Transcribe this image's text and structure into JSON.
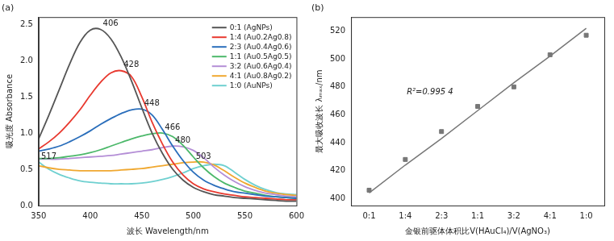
{
  "chart_data": [
    {
      "type": "line",
      "title": "(a)",
      "x_label": "波长 Wavelength/nm",
      "y_label": "吸光度 Absorbance",
      "x": [
        350,
        360,
        370,
        380,
        390,
        400,
        410,
        420,
        430,
        440,
        450,
        460,
        470,
        480,
        490,
        500,
        510,
        520,
        530,
        540,
        550,
        560,
        570,
        580,
        590,
        600
      ],
      "series": [
        {
          "name": "0:1 (AgNPs)",
          "color": "#555555",
          "peak_label": "406",
          "values": [
            0.92,
            1.25,
            1.6,
            1.95,
            2.25,
            2.42,
            2.43,
            2.3,
            2.05,
            1.72,
            1.35,
            1.0,
            0.72,
            0.5,
            0.35,
            0.25,
            0.19,
            0.15,
            0.13,
            0.11,
            0.1,
            0.09,
            0.08,
            0.07,
            0.06,
            0.06
          ]
        },
        {
          "name": "1:4 (Au0.2Ag0.8)",
          "color": "#e8392f",
          "peak_label": "428",
          "values": [
            0.78,
            0.88,
            1.0,
            1.15,
            1.32,
            1.52,
            1.7,
            1.83,
            1.86,
            1.78,
            1.5,
            1.15,
            0.85,
            0.6,
            0.42,
            0.3,
            0.23,
            0.19,
            0.16,
            0.14,
            0.12,
            0.11,
            0.1,
            0.09,
            0.08,
            0.08
          ]
        },
        {
          "name": "2:3 (Au0.4Ag0.6)",
          "color": "#2a6ebb",
          "peak_label": "448",
          "values": [
            0.75,
            0.78,
            0.82,
            0.88,
            0.95,
            1.03,
            1.12,
            1.2,
            1.27,
            1.32,
            1.33,
            1.25,
            1.05,
            0.82,
            0.62,
            0.46,
            0.35,
            0.28,
            0.23,
            0.19,
            0.17,
            0.15,
            0.13,
            0.12,
            0.11,
            0.1
          ]
        },
        {
          "name": "1:1 (Au0.5Ag0.5)",
          "color": "#4cb86a",
          "peak_label": "466",
          "values": [
            0.65,
            0.65,
            0.66,
            0.68,
            0.7,
            0.73,
            0.77,
            0.82,
            0.87,
            0.92,
            0.96,
            0.99,
            1.0,
            0.95,
            0.83,
            0.67,
            0.52,
            0.4,
            0.31,
            0.25,
            0.2,
            0.17,
            0.14,
            0.12,
            0.11,
            0.1
          ]
        },
        {
          "name": "3:2 (Au0.6Ag0.4)",
          "color": "#b48ed6",
          "peak_label": "480",
          "values": [
            0.64,
            0.64,
            0.64,
            0.65,
            0.66,
            0.67,
            0.68,
            0.69,
            0.71,
            0.73,
            0.75,
            0.77,
            0.8,
            0.82,
            0.81,
            0.76,
            0.66,
            0.53,
            0.42,
            0.33,
            0.26,
            0.21,
            0.17,
            0.15,
            0.13,
            0.12
          ]
        },
        {
          "name": "4:1 (Au0.8Ag0.2)",
          "color": "#f0a830",
          "peak_label": "503",
          "values": [
            0.55,
            0.52,
            0.5,
            0.49,
            0.48,
            0.48,
            0.48,
            0.48,
            0.49,
            0.5,
            0.51,
            0.53,
            0.55,
            0.57,
            0.59,
            0.6,
            0.6,
            0.56,
            0.48,
            0.39,
            0.31,
            0.25,
            0.2,
            0.17,
            0.15,
            0.14
          ]
        },
        {
          "name": "1:0 (AuNPs)",
          "color": "#6fd0d0",
          "peak_label": "517",
          "values": [
            0.6,
            0.5,
            0.43,
            0.38,
            0.34,
            0.32,
            0.31,
            0.3,
            0.3,
            0.3,
            0.31,
            0.33,
            0.36,
            0.4,
            0.45,
            0.51,
            0.55,
            0.57,
            0.55,
            0.46,
            0.36,
            0.28,
            0.22,
            0.18,
            0.16,
            0.15
          ]
        }
      ],
      "xlim": [
        350,
        600
      ],
      "xticks": [
        350,
        400,
        450,
        500,
        550,
        600
      ],
      "ylim": [
        0,
        2.6
      ],
      "yticks": [
        {
          "value": 0,
          "label": "0.0"
        },
        0.5,
        {
          "value": 1,
          "label": "1.0"
        },
        1.5,
        {
          "value": 2,
          "label": "2.0"
        },
        2.5
      ],
      "grid": false,
      "legend": "upper right"
    },
    {
      "type": "scatter",
      "title": "(b)",
      "x_label": "金银前驱体体积比V(HAuCl₄)/V(AgNO₃)",
      "y_label": "最大吸收波长 λₘₐₓ/nm",
      "categories": [
        "0:1",
        "1:4",
        "2:3",
        "1:1",
        "3:2",
        "4:1",
        "1:0"
      ],
      "series": [
        {
          "type": "scatter",
          "marker": "square",
          "color": "#777777",
          "values": [
            406,
            428,
            448,
            466,
            480,
            503,
            517
          ]
        },
        {
          "type": "line",
          "color": "#777777",
          "line_style": "solid",
          "values": [
            404,
            424,
            443,
            463,
            483,
            502,
            522
          ]
        }
      ],
      "annotations": [
        "R²=0.995 4"
      ],
      "ylim": [
        395,
        530
      ],
      "yticks": [
        400,
        420,
        440,
        460,
        480,
        500,
        520
      ],
      "grid": false
    }
  ]
}
